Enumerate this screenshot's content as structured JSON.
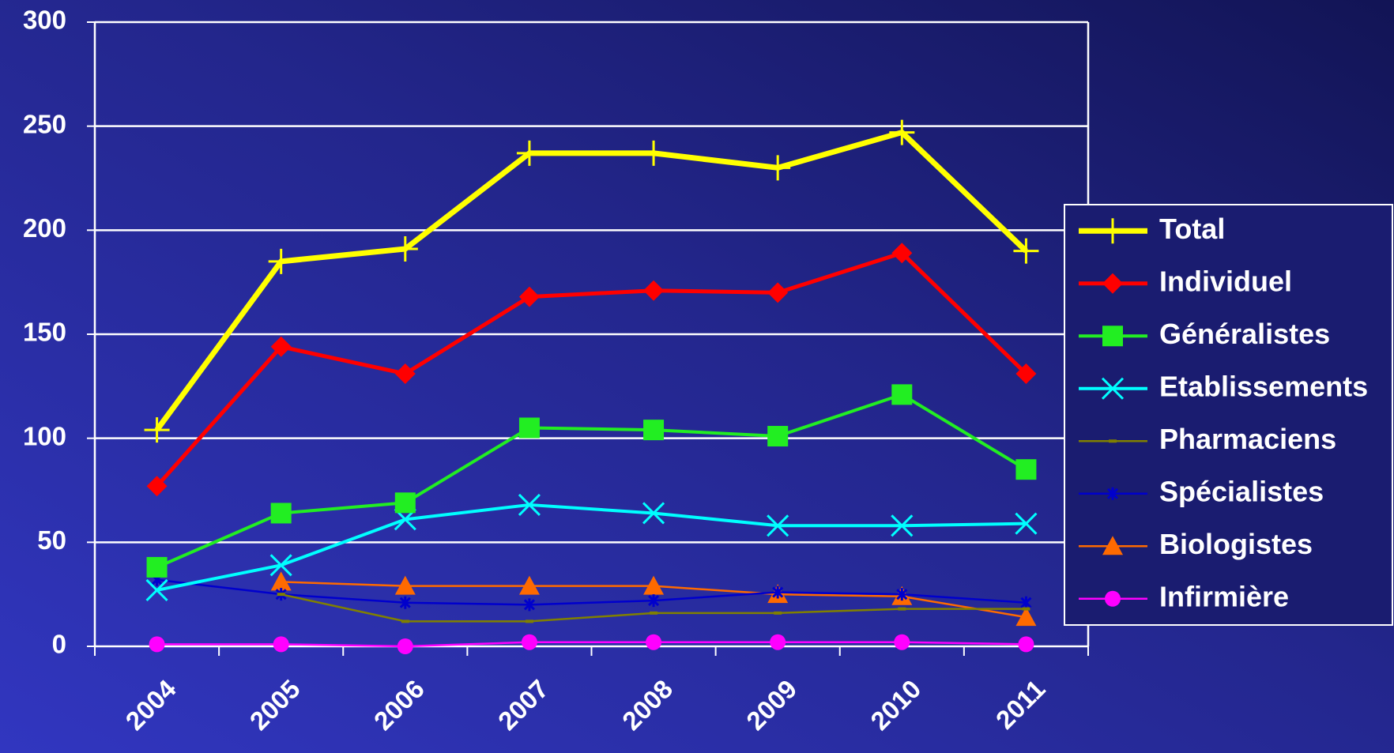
{
  "chart_data": {
    "type": "line",
    "categories": [
      "2004",
      "2005",
      "2006",
      "2007",
      "2008",
      "2009",
      "2010",
      "2011"
    ],
    "ylim": [
      0,
      300
    ],
    "yticks": [
      0,
      50,
      100,
      150,
      200,
      250,
      300
    ],
    "grid": true,
    "legend": "right",
    "series": [
      {
        "name": "Total",
        "color": "#ffff00",
        "marker": "plus",
        "values": [
          104,
          185,
          191,
          237,
          237,
          230,
          247,
          190
        ]
      },
      {
        "name": "Individuel",
        "color": "#ff0000",
        "marker": "diamond",
        "values": [
          77,
          144,
          131,
          168,
          171,
          170,
          189,
          131
        ]
      },
      {
        "name": "Généralistes",
        "color": "#22ee22",
        "marker": "square",
        "values": [
          38,
          64,
          69,
          105,
          104,
          101,
          121,
          85
        ]
      },
      {
        "name": "Etablissements",
        "color": "#00ffff",
        "marker": "x",
        "values": [
          27,
          39,
          61,
          68,
          64,
          58,
          58,
          59
        ]
      },
      {
        "name": "Pharmaciens",
        "color": "#808000",
        "marker": "dash",
        "values": [
          null,
          25,
          12,
          12,
          16,
          16,
          18,
          18
        ]
      },
      {
        "name": "Spécialistes",
        "color": "#0000cc",
        "marker": "star",
        "values": [
          32,
          25,
          21,
          20,
          22,
          26,
          25,
          21
        ]
      },
      {
        "name": "Biologistes",
        "color": "#ff6a00",
        "marker": "triangle",
        "values": [
          null,
          31,
          29,
          29,
          29,
          25,
          24,
          14
        ]
      },
      {
        "name": "Infirmière",
        "color": "#ff00ff",
        "marker": "circle",
        "values": [
          1,
          1,
          0,
          2,
          2,
          2,
          2,
          1
        ]
      }
    ]
  }
}
